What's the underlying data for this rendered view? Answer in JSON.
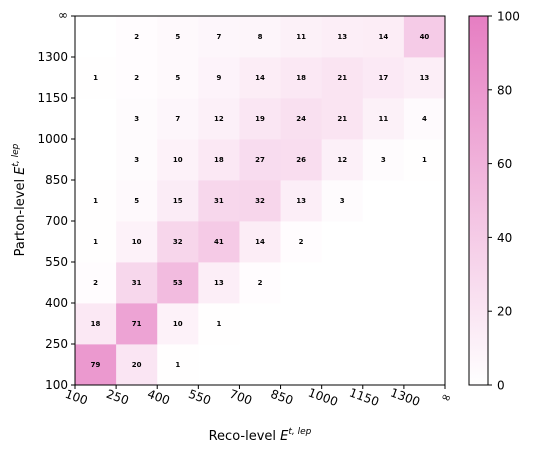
{
  "chart_data": {
    "type": "heatmap",
    "title": "",
    "xlabel_main": "Reco-level ",
    "xlabel_math": "E",
    "xlabel_sup": "t, lep",
    "ylabel_main": "Parton-level ",
    "ylabel_math": "E",
    "ylabel_sup": "t, lep",
    "x_ticks": [
      "100",
      "250",
      "400",
      "550",
      "700",
      "850",
      "1000",
      "1150",
      "1300",
      "∞"
    ],
    "y_ticks": [
      "100",
      "250",
      "400",
      "550",
      "700",
      "850",
      "1000",
      "1150",
      "1300",
      "∞"
    ],
    "x_bins": [
      "100–250",
      "250–400",
      "400–550",
      "550–700",
      "700–850",
      "850–1000",
      "1000–1150",
      "1150–1300",
      "1300–∞"
    ],
    "y_bins": [
      "100–250",
      "250–400",
      "400–550",
      "550–700",
      "700–850",
      "850–1000",
      "1000–1150",
      "1150–1300",
      "1300–∞"
    ],
    "values": [
      [
        79,
        20,
        1,
        0,
        0,
        0,
        0,
        0,
        0
      ],
      [
        18,
        71,
        10,
        1,
        0,
        0,
        0,
        0,
        0
      ],
      [
        2,
        31,
        53,
        13,
        2,
        0,
        0,
        0,
        0
      ],
      [
        1,
        10,
        32,
        41,
        14,
        2,
        0,
        0,
        0
      ],
      [
        1,
        5,
        15,
        31,
        32,
        13,
        3,
        0,
        0
      ],
      [
        0,
        3,
        10,
        18,
        27,
        26,
        12,
        3,
        1
      ],
      [
        0,
        3,
        7,
        12,
        19,
        24,
        21,
        11,
        4
      ],
      [
        1,
        2,
        5,
        9,
        14,
        18,
        21,
        17,
        13
      ],
      [
        0,
        2,
        5,
        7,
        8,
        11,
        13,
        14,
        40
      ]
    ],
    "row_order": "bottom-to-top (first row = Parton-level 100–250)",
    "color_range": [
      0,
      100
    ],
    "colormap": {
      "low": "#ffffff",
      "high": "#e67ec2"
    },
    "colorbar_ticks": [
      "0",
      "20",
      "40",
      "60",
      "80",
      "100"
    ],
    "grid": false,
    "legend": "colorbar-right"
  }
}
